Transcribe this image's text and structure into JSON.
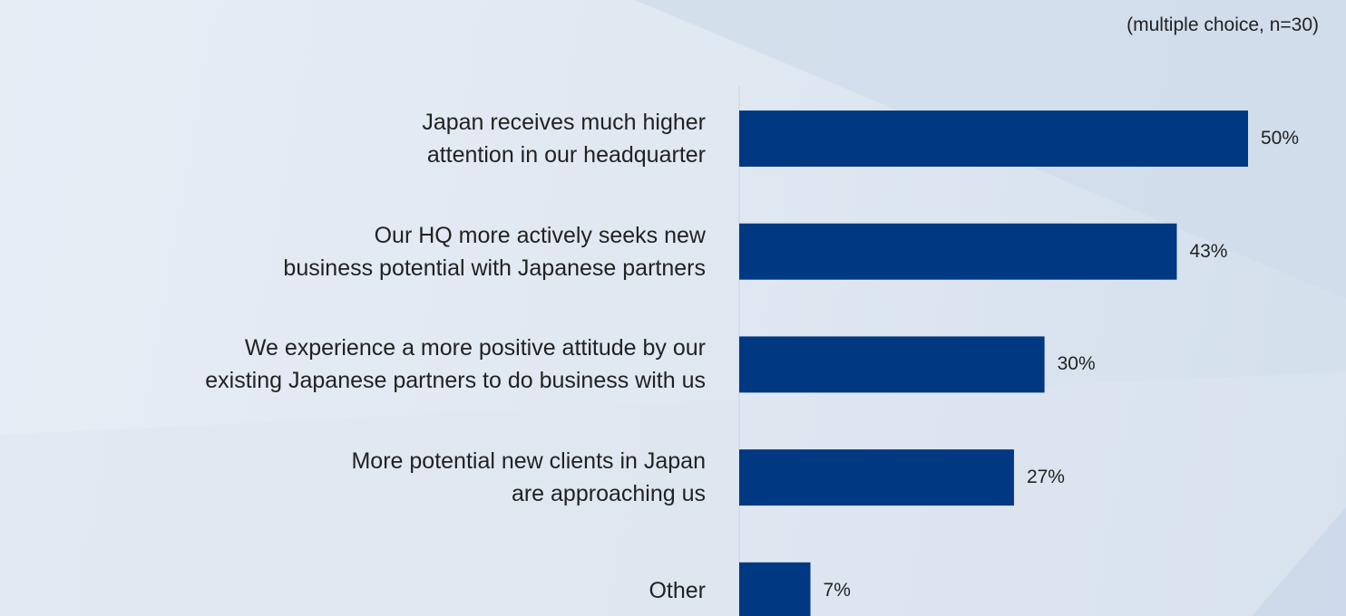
{
  "chart_data": {
    "type": "bar",
    "orientation": "horizontal",
    "subtitle": "(multiple choice, n=30)",
    "categories": [
      "Japan receives much higher\nattention in our headquarter",
      "Our HQ more actively seeks new\nbusiness potential with Japanese partners",
      "We experience a more positive attitude by our\nexisting Japanese partners to do business with us",
      "More potential new clients in Japan\nare approaching us",
      "Other"
    ],
    "values": [
      50,
      43,
      30,
      27,
      7
    ],
    "value_labels": [
      "50%",
      "43%",
      "30%",
      "27%",
      "7%"
    ],
    "color": "#003882"
  }
}
